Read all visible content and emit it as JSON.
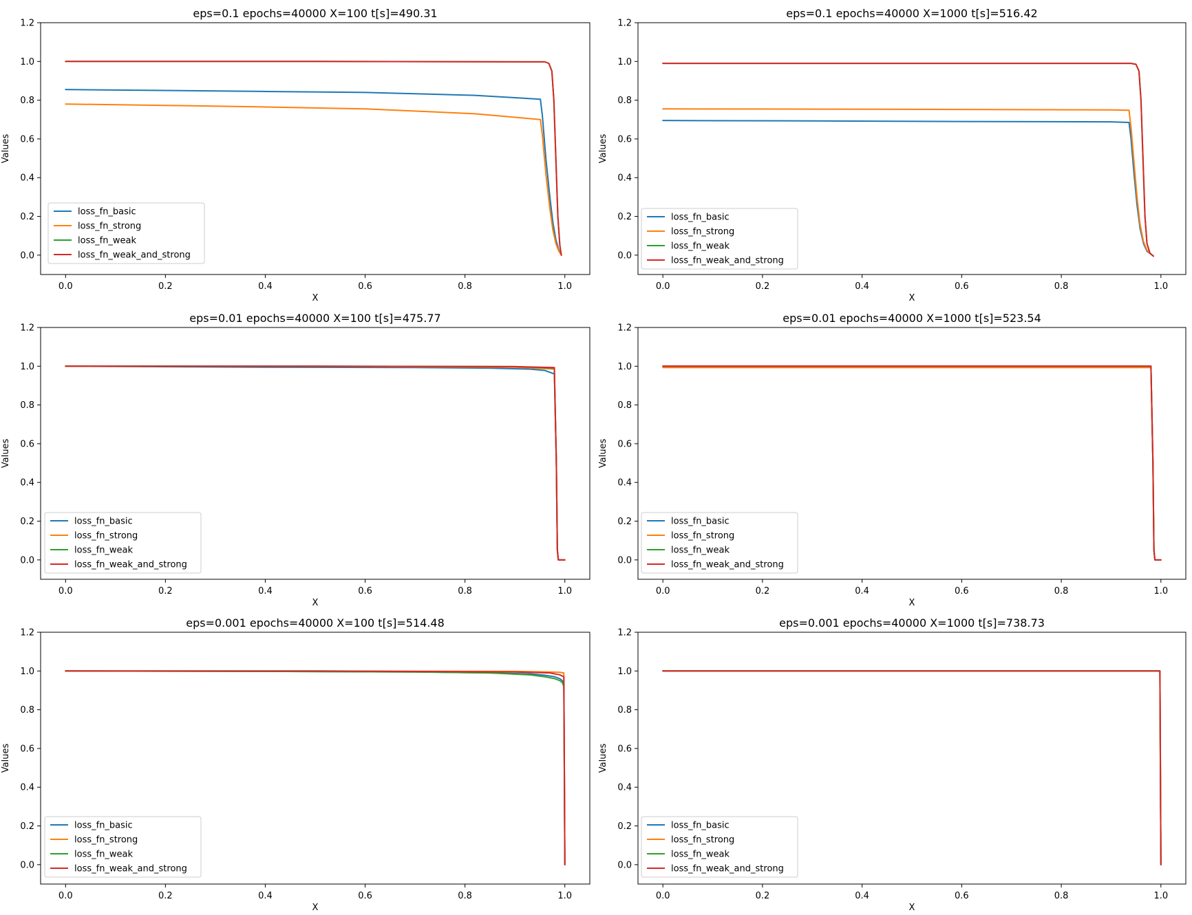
{
  "figure": {
    "colors": {
      "loss_fn_basic": "#1f77b4",
      "loss_fn_strong": "#ff7f0e",
      "loss_fn_weak": "#2ca02c",
      "loss_fn_weak_and_strong": "#d62728"
    }
  },
  "chart_data": [
    {
      "type": "line",
      "title": "eps=0.1 epochs=40000 X=100 t[s]=490.31",
      "xlabel": "X",
      "ylabel": "Values",
      "xlim": [
        -0.05,
        1.05
      ],
      "ylim": [
        -0.1,
        1.2
      ],
      "xticks": [
        "0.0",
        "0.2",
        "0.4",
        "0.6",
        "0.8",
        "1.0"
      ],
      "yticks": [
        "0.0",
        "0.2",
        "0.4",
        "0.6",
        "0.8",
        "1.0",
        "1.2"
      ],
      "grid": false,
      "legend_position": "lower-left",
      "series": [
        {
          "name": "loss_fn_basic",
          "color": "#1f77b4",
          "x": [
            0,
            0.2,
            0.4,
            0.6,
            0.82,
            0.951,
            0.955,
            0.962,
            0.97,
            0.976,
            0.982,
            0.988,
            0.993
          ],
          "y": [
            0.855,
            0.85,
            0.845,
            0.84,
            0.825,
            0.805,
            0.72,
            0.5,
            0.3,
            0.17,
            0.08,
            0.025,
            0.0
          ]
        },
        {
          "name": "loss_fn_strong",
          "color": "#ff7f0e",
          "x": [
            0,
            0.2,
            0.4,
            0.6,
            0.82,
            0.951,
            0.955,
            0.962,
            0.97,
            0.976,
            0.982,
            0.988,
            0.993
          ],
          "y": [
            0.78,
            0.773,
            0.765,
            0.755,
            0.73,
            0.7,
            0.62,
            0.42,
            0.24,
            0.13,
            0.06,
            0.02,
            0.0
          ]
        },
        {
          "name": "loss_fn_weak",
          "color": "#2ca02c",
          "x": [
            0,
            0.5,
            0.96,
            0.968,
            0.974,
            0.978,
            0.982,
            0.986,
            0.99,
            0.993
          ],
          "y": [
            1.0,
            1.0,
            0.998,
            0.99,
            0.95,
            0.8,
            0.5,
            0.2,
            0.05,
            0.0
          ]
        },
        {
          "name": "loss_fn_weak_and_strong",
          "color": "#d62728",
          "x": [
            0,
            0.5,
            0.96,
            0.968,
            0.974,
            0.978,
            0.982,
            0.986,
            0.99,
            0.993
          ],
          "y": [
            1.0,
            1.0,
            0.998,
            0.99,
            0.95,
            0.8,
            0.5,
            0.2,
            0.05,
            0.0
          ]
        }
      ]
    },
    {
      "type": "line",
      "title": "eps=0.1 epochs=40000 X=1000 t[s]=516.42",
      "xlabel": "X",
      "ylabel": "Values",
      "xlim": [
        -0.05,
        1.05
      ],
      "ylim": [
        -0.1,
        1.2
      ],
      "xticks": [
        "0.0",
        "0.2",
        "0.4",
        "0.6",
        "0.8",
        "1.0"
      ],
      "yticks": [
        "0.0",
        "0.2",
        "0.4",
        "0.6",
        "0.8",
        "1.0",
        "1.2"
      ],
      "grid": false,
      "legend_position": "lower-left",
      "series": [
        {
          "name": "loss_fn_basic",
          "color": "#1f77b4",
          "x": [
            0,
            0.3,
            0.6,
            0.9,
            0.936,
            0.94,
            0.946,
            0.952,
            0.958,
            0.965,
            0.972,
            0.98,
            0.985
          ],
          "y": [
            0.695,
            0.693,
            0.69,
            0.688,
            0.685,
            0.6,
            0.42,
            0.26,
            0.14,
            0.06,
            0.02,
            0.005,
            -0.005
          ]
        },
        {
          "name": "loss_fn_strong",
          "color": "#ff7f0e",
          "x": [
            0,
            0.3,
            0.6,
            0.9,
            0.936,
            0.94,
            0.946,
            0.952,
            0.958,
            0.965,
            0.972,
            0.98,
            0.985
          ],
          "y": [
            0.755,
            0.754,
            0.752,
            0.75,
            0.748,
            0.66,
            0.48,
            0.3,
            0.16,
            0.07,
            0.025,
            0.005,
            -0.005
          ]
        },
        {
          "name": "loss_fn_weak",
          "color": "#2ca02c",
          "x": [
            0,
            0.5,
            0.94,
            0.95,
            0.956,
            0.96,
            0.964,
            0.968,
            0.972,
            0.978,
            0.985
          ],
          "y": [
            0.99,
            0.99,
            0.99,
            0.985,
            0.95,
            0.8,
            0.5,
            0.2,
            0.06,
            0.01,
            -0.005
          ]
        },
        {
          "name": "loss_fn_weak_and_strong",
          "color": "#d62728",
          "x": [
            0,
            0.5,
            0.94,
            0.95,
            0.956,
            0.96,
            0.964,
            0.968,
            0.972,
            0.978,
            0.985
          ],
          "y": [
            0.99,
            0.99,
            0.99,
            0.985,
            0.95,
            0.8,
            0.5,
            0.2,
            0.06,
            0.01,
            -0.005
          ]
        }
      ]
    },
    {
      "type": "line",
      "title": "eps=0.01 epochs=40000 X=100 t[s]=475.77",
      "xlabel": "X",
      "ylabel": "Values",
      "xlim": [
        -0.05,
        1.05
      ],
      "ylim": [
        -0.1,
        1.2
      ],
      "xticks": [
        "0.0",
        "0.2",
        "0.4",
        "0.6",
        "0.8",
        "1.0"
      ],
      "yticks": [
        "0.0",
        "0.2",
        "0.4",
        "0.6",
        "0.8",
        "1.0",
        "1.2"
      ],
      "grid": false,
      "legend_position": "lower-left",
      "series": [
        {
          "name": "loss_fn_basic",
          "color": "#1f77b4",
          "x": [
            0,
            0.4,
            0.7,
            0.85,
            0.93,
            0.96,
            0.979,
            0.983,
            0.985,
            0.987,
            0.99,
            1.0
          ],
          "y": [
            1.0,
            0.995,
            0.993,
            0.99,
            0.985,
            0.978,
            0.96,
            0.5,
            0.05,
            0.0,
            0.0,
            0.0
          ]
        },
        {
          "name": "loss_fn_strong",
          "color": "#ff7f0e",
          "x": [
            0,
            0.5,
            0.9,
            0.979,
            0.983,
            0.985,
            0.987,
            0.99,
            1.0
          ],
          "y": [
            1.0,
            0.999,
            0.995,
            0.985,
            0.5,
            0.05,
            0.0,
            0.0,
            0.0
          ]
        },
        {
          "name": "loss_fn_weak",
          "color": "#2ca02c",
          "x": [
            0,
            0.5,
            0.9,
            0.979,
            0.983,
            0.985,
            0.987,
            0.99,
            1.0
          ],
          "y": [
            1.0,
            1.0,
            0.998,
            0.99,
            0.5,
            0.05,
            0.0,
            0.0,
            0.0
          ]
        },
        {
          "name": "loss_fn_weak_and_strong",
          "color": "#d62728",
          "x": [
            0,
            0.5,
            0.9,
            0.979,
            0.983,
            0.985,
            0.987,
            0.99,
            1.0
          ],
          "y": [
            1.0,
            1.0,
            0.998,
            0.993,
            0.5,
            0.05,
            0.0,
            0.0,
            0.0
          ]
        }
      ]
    },
    {
      "type": "line",
      "title": "eps=0.01 epochs=40000 X=1000 t[s]=523.54",
      "xlabel": "X",
      "ylabel": "Values",
      "xlim": [
        -0.05,
        1.05
      ],
      "ylim": [
        -0.1,
        1.2
      ],
      "xticks": [
        "0.0",
        "0.2",
        "0.4",
        "0.6",
        "0.8",
        "1.0"
      ],
      "yticks": [
        "0.0",
        "0.2",
        "0.4",
        "0.6",
        "0.8",
        "1.0",
        "1.2"
      ],
      "grid": false,
      "legend_position": "lower-left",
      "series": [
        {
          "name": "loss_fn_basic",
          "color": "#1f77b4",
          "x": [
            0,
            0.5,
            0.98,
            0.984,
            0.986,
            0.988,
            0.99,
            1.0
          ],
          "y": [
            1.0,
            1.0,
            1.0,
            0.5,
            0.05,
            0.0,
            0.0,
            0.0
          ]
        },
        {
          "name": "loss_fn_strong",
          "color": "#ff7f0e",
          "x": [
            0,
            0.5,
            0.98,
            0.984,
            0.986,
            0.988,
            0.99,
            1.0
          ],
          "y": [
            0.993,
            0.993,
            0.993,
            0.5,
            0.05,
            0.0,
            0.0,
            0.0
          ]
        },
        {
          "name": "loss_fn_weak",
          "color": "#2ca02c",
          "x": [
            0,
            0.5,
            0.98,
            0.984,
            0.986,
            0.988,
            0.99,
            1.0
          ],
          "y": [
            1.0,
            1.0,
            1.0,
            0.5,
            0.05,
            0.0,
            0.0,
            0.0
          ]
        },
        {
          "name": "loss_fn_weak_and_strong",
          "color": "#d62728",
          "x": [
            0,
            0.5,
            0.98,
            0.984,
            0.986,
            0.988,
            0.99,
            1.0
          ],
          "y": [
            1.0,
            1.0,
            1.0,
            0.5,
            0.05,
            0.0,
            0.0,
            0.0
          ]
        }
      ]
    },
    {
      "type": "line",
      "title": "eps=0.001 epochs=40000 X=100 t[s]=514.48",
      "xlabel": "X",
      "ylabel": "Values",
      "xlim": [
        -0.05,
        1.05
      ],
      "ylim": [
        -0.1,
        1.2
      ],
      "xticks": [
        "0.0",
        "0.2",
        "0.4",
        "0.6",
        "0.8",
        "1.0"
      ],
      "yticks": [
        "0.0",
        "0.2",
        "0.4",
        "0.6",
        "0.8",
        "1.0",
        "1.2"
      ],
      "grid": false,
      "legend_position": "lower-left",
      "series": [
        {
          "name": "loss_fn_basic",
          "color": "#1f77b4",
          "x": [
            0,
            0.4,
            0.7,
            0.85,
            0.93,
            0.96,
            0.98,
            0.99,
            0.995,
            0.998,
            0.999,
            1.0
          ],
          "y": [
            1.0,
            0.998,
            0.995,
            0.99,
            0.985,
            0.978,
            0.97,
            0.96,
            0.95,
            0.94,
            0.5,
            0.0
          ]
        },
        {
          "name": "loss_fn_strong",
          "color": "#ff7f0e",
          "x": [
            0,
            0.5,
            0.9,
            0.97,
            0.99,
            0.998,
            0.999,
            1.0
          ],
          "y": [
            1.0,
            0.999,
            0.998,
            0.995,
            0.993,
            0.99,
            0.5,
            0.0
          ]
        },
        {
          "name": "loss_fn_weak",
          "color": "#2ca02c",
          "x": [
            0,
            0.4,
            0.7,
            0.85,
            0.93,
            0.96,
            0.98,
            0.99,
            0.995,
            0.998,
            0.999,
            1.0
          ],
          "y": [
            1.0,
            0.998,
            0.995,
            0.99,
            0.98,
            0.97,
            0.96,
            0.95,
            0.94,
            0.92,
            0.5,
            0.0
          ]
        },
        {
          "name": "loss_fn_weak_and_strong",
          "color": "#d62728",
          "x": [
            0,
            0.5,
            0.9,
            0.97,
            0.99,
            0.998,
            0.999,
            1.0
          ],
          "y": [
            1.0,
            1.0,
            0.995,
            0.99,
            0.98,
            0.97,
            0.5,
            0.0
          ]
        }
      ]
    },
    {
      "type": "line",
      "title": "eps=0.001 epochs=40000 X=1000 t[s]=738.73",
      "xlabel": "X",
      "ylabel": "Values",
      "xlim": [
        -0.05,
        1.05
      ],
      "ylim": [
        -0.1,
        1.2
      ],
      "xticks": [
        "0.0",
        "0.2",
        "0.4",
        "0.6",
        "0.8",
        "1.0"
      ],
      "yticks": [
        "0.0",
        "0.2",
        "0.4",
        "0.6",
        "0.8",
        "1.0",
        "1.2"
      ],
      "grid": false,
      "legend_position": "lower-left",
      "series": [
        {
          "name": "loss_fn_basic",
          "color": "#1f77b4",
          "x": [
            0,
            0.5,
            0.998,
            0.999,
            1.0
          ],
          "y": [
            1.0,
            1.0,
            1.0,
            0.5,
            0.0
          ]
        },
        {
          "name": "loss_fn_strong",
          "color": "#ff7f0e",
          "x": [
            0,
            0.5,
            0.998,
            0.999,
            1.0
          ],
          "y": [
            1.0,
            1.0,
            1.0,
            0.5,
            0.0
          ]
        },
        {
          "name": "loss_fn_weak",
          "color": "#2ca02c",
          "x": [
            0,
            0.5,
            0.998,
            0.999,
            1.0
          ],
          "y": [
            1.0,
            1.0,
            1.0,
            0.5,
            0.0
          ]
        },
        {
          "name": "loss_fn_weak_and_strong",
          "color": "#d62728",
          "x": [
            0,
            0.5,
            0.998,
            0.999,
            1.0
          ],
          "y": [
            1.0,
            1.0,
            1.0,
            0.5,
            0.0
          ]
        }
      ]
    }
  ]
}
